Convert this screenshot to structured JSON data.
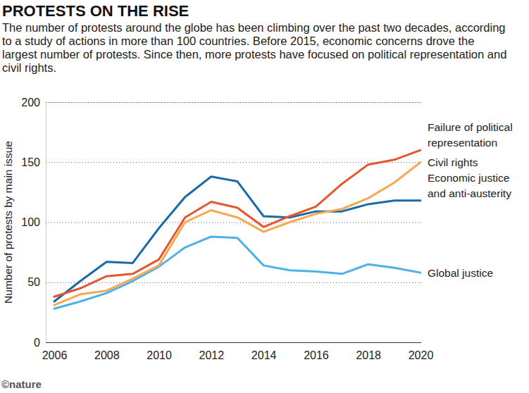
{
  "chart_data": {
    "type": "line",
    "title": "PROTESTS ON THE RISE",
    "subtitle": "The number of protests around the globe has been climbing over the past two decades, according to a study of actions in more than 100 countries. Before 2015, economic concerns drove the largest number of protests. Since then, more protests have focused on political representation and civil rights.",
    "y_label": "Number of protests by main issue",
    "credit": "©nature",
    "x": [
      2006,
      2007,
      2008,
      2009,
      2010,
      2011,
      2012,
      2013,
      2014,
      2015,
      2016,
      2017,
      2018,
      2019,
      2020
    ],
    "xlim": [
      2006,
      2020
    ],
    "xticks": [
      2006,
      2008,
      2010,
      2012,
      2014,
      2016,
      2018,
      2020
    ],
    "ylim": [
      0,
      200
    ],
    "yticks": [
      0,
      50,
      100,
      150,
      200
    ],
    "grid": true,
    "series": [
      {
        "name": "Failure of political representation",
        "color": "#e4572e",
        "values": [
          38,
          45,
          55,
          57,
          69,
          104,
          117,
          112,
          96,
          105,
          113,
          132,
          148,
          152,
          160
        ]
      },
      {
        "name": "Civil rights",
        "color": "#f6a955",
        "values": [
          31,
          40,
          43,
          53,
          64,
          100,
          110,
          104,
          92,
          100,
          107,
          111,
          120,
          133,
          150
        ]
      },
      {
        "name": "Economic justice and anti-austerity",
        "color": "#1a6aa8",
        "values": [
          34,
          51,
          67,
          66,
          95,
          121,
          138,
          134,
          105,
          104,
          109,
          109,
          115,
          118,
          118
        ]
      },
      {
        "name": "Global justice",
        "color": "#4cb1e6",
        "values": [
          28,
          34,
          41,
          51,
          63,
          79,
          88,
          87,
          64,
          60,
          59,
          57,
          65,
          62,
          58
        ]
      }
    ]
  }
}
